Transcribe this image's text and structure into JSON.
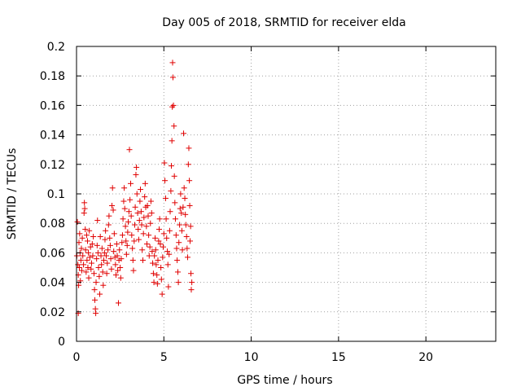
{
  "chart_data": {
    "type": "scatter",
    "title": "Day 005 of 2018, SRMTID for receiver elda",
    "xlabel": "GPS time / hours",
    "ylabel": "SRMTID / TECUs",
    "xlim": [
      0,
      24
    ],
    "ylim": [
      0,
      0.2
    ],
    "x_ticks": [
      0,
      5,
      10,
      15,
      20
    ],
    "x_tick_labels": [
      "0",
      "5",
      "10",
      "15",
      "20"
    ],
    "y_ticks": [
      0,
      0.02,
      0.04,
      0.06,
      0.08,
      0.1,
      0.12,
      0.14,
      0.16,
      0.18,
      0.2
    ],
    "y_tick_labels": [
      "0",
      "0.02",
      "0.04",
      "0.06",
      "0.08",
      "0.1",
      "0.12",
      "0.14",
      "0.16",
      "0.18",
      "0.2"
    ],
    "grid": true,
    "marker": "+",
    "color": "#e00000",
    "series": [
      {
        "name": "SRMTID",
        "points": [
          [
            0.02,
            0.058
          ],
          [
            0.05,
            0.081
          ],
          [
            0.08,
            0.052
          ],
          [
            0.1,
            0.045
          ],
          [
            0.12,
            0.038
          ],
          [
            0.14,
            0.067
          ],
          [
            0.16,
            0.05
          ],
          [
            0.18,
            0.073
          ],
          [
            0.2,
            0.06
          ],
          [
            0.22,
            0.041
          ],
          [
            0.1,
            0.019
          ],
          [
            0.25,
            0.055
          ],
          [
            0.28,
            0.063
          ],
          [
            0.3,
            0.048
          ],
          [
            0.33,
            0.07
          ],
          [
            0.36,
            0.058
          ],
          [
            0.4,
            0.052
          ],
          [
            0.43,
            0.087
          ],
          [
            0.45,
            0.094
          ],
          [
            0.47,
            0.09
          ],
          [
            0.5,
            0.076
          ],
          [
            0.52,
            0.062
          ],
          [
            0.55,
            0.047
          ],
          [
            0.58,
            0.072
          ],
          [
            0.6,
            0.055
          ],
          [
            0.63,
            0.068
          ],
          [
            0.65,
            0.05
          ],
          [
            0.68,
            0.06
          ],
          [
            0.7,
            0.043
          ],
          [
            0.73,
            0.075
          ],
          [
            0.76,
            0.057
          ],
          [
            0.8,
            0.064
          ],
          [
            0.83,
            0.049
          ],
          [
            0.86,
            0.053
          ],
          [
            0.9,
            0.066
          ],
          [
            0.93,
            0.058
          ],
          [
            0.96,
            0.071
          ],
          [
            1.0,
            0.046
          ],
          [
            1.03,
            0.035
          ],
          [
            1.05,
            0.028
          ],
          [
            1.08,
            0.022
          ],
          [
            1.1,
            0.019
          ],
          [
            1.12,
            0.04
          ],
          [
            1.15,
            0.056
          ],
          [
            1.18,
            0.065
          ],
          [
            1.2,
            0.082
          ],
          [
            1.23,
            0.06
          ],
          [
            1.26,
            0.05
          ],
          [
            1.3,
            0.044
          ],
          [
            1.33,
            0.032
          ],
          [
            1.36,
            0.071
          ],
          [
            1.4,
            0.058
          ],
          [
            1.43,
            0.052
          ],
          [
            1.46,
            0.063
          ],
          [
            1.5,
            0.047
          ],
          [
            1.53,
            0.038
          ],
          [
            1.56,
            0.055
          ],
          [
            1.6,
            0.06
          ],
          [
            1.63,
            0.069
          ],
          [
            1.66,
            0.075
          ],
          [
            1.7,
            0.058
          ],
          [
            1.73,
            0.046
          ],
          [
            1.76,
            0.053
          ],
          [
            1.8,
            0.062
          ],
          [
            1.83,
            0.079
          ],
          [
            1.86,
            0.085
          ],
          [
            1.9,
            0.07
          ],
          [
            1.93,
            0.065
          ],
          [
            1.96,
            0.056
          ],
          [
            2.0,
            0.049
          ],
          [
            2.03,
            0.092
          ],
          [
            2.06,
            0.104
          ],
          [
            2.1,
            0.089
          ],
          [
            2.13,
            0.061
          ],
          [
            2.16,
            0.073
          ],
          [
            2.2,
            0.057
          ],
          [
            2.23,
            0.052
          ],
          [
            2.26,
            0.045
          ],
          [
            2.3,
            0.066
          ],
          [
            2.33,
            0.058
          ],
          [
            2.36,
            0.048
          ],
          [
            2.4,
            0.026
          ],
          [
            2.43,
            0.055
          ],
          [
            2.46,
            0.062
          ],
          [
            2.5,
            0.05
          ],
          [
            2.53,
            0.043
          ],
          [
            2.56,
            0.056
          ],
          [
            2.6,
            0.067
          ],
          [
            2.63,
            0.072
          ],
          [
            2.66,
            0.083
          ],
          [
            2.7,
            0.095
          ],
          [
            2.73,
            0.104
          ],
          [
            2.76,
            0.09
          ],
          [
            2.8,
            0.078
          ],
          [
            2.83,
            0.068
          ],
          [
            2.86,
            0.059
          ],
          [
            2.9,
            0.065
          ],
          [
            2.93,
            0.074
          ],
          [
            2.96,
            0.081
          ],
          [
            3.0,
            0.088
          ],
          [
            3.03,
            0.13
          ],
          [
            3.06,
            0.096
          ],
          [
            3.1,
            0.107
          ],
          [
            3.13,
            0.085
          ],
          [
            3.16,
            0.072
          ],
          [
            3.2,
            0.063
          ],
          [
            3.23,
            0.055
          ],
          [
            3.26,
            0.048
          ],
          [
            3.3,
            0.068
          ],
          [
            3.33,
            0.079
          ],
          [
            3.36,
            0.091
          ],
          [
            3.4,
            0.113
          ],
          [
            3.43,
            0.118
          ],
          [
            3.46,
            0.1
          ],
          [
            3.5,
            0.087
          ],
          [
            3.53,
            0.076
          ],
          [
            3.56,
            0.069
          ],
          [
            3.6,
            0.082
          ],
          [
            3.63,
            0.095
          ],
          [
            3.66,
            0.103
          ],
          [
            3.7,
            0.088
          ],
          [
            3.73,
            0.079
          ],
          [
            3.76,
            0.062
          ],
          [
            3.8,
            0.055
          ],
          [
            3.83,
            0.073
          ],
          [
            3.86,
            0.084
          ],
          [
            3.9,
            0.098
          ],
          [
            3.93,
            0.107
          ],
          [
            3.96,
            0.091
          ],
          [
            4.0,
            0.078
          ],
          [
            4.03,
            0.066
          ],
          [
            4.06,
            0.092
          ],
          [
            4.1,
            0.085
          ],
          [
            4.13,
            0.072
          ],
          [
            4.16,
            0.058
          ],
          [
            4.2,
            0.064
          ],
          [
            4.23,
            0.08
          ],
          [
            4.26,
            0.095
          ],
          [
            4.3,
            0.087
          ],
          [
            4.33,
            0.061
          ],
          [
            4.36,
            0.053
          ],
          [
            4.4,
            0.046
          ],
          [
            4.43,
            0.04
          ],
          [
            4.46,
            0.058
          ],
          [
            4.5,
            0.07
          ],
          [
            4.53,
            0.062
          ],
          [
            4.56,
            0.052
          ],
          [
            4.6,
            0.045
          ],
          [
            4.63,
            0.039
          ],
          [
            4.66,
            0.055
          ],
          [
            4.7,
            0.068
          ],
          [
            4.73,
            0.076
          ],
          [
            4.76,
            0.083
          ],
          [
            4.8,
            0.066
          ],
          [
            4.83,
            0.05
          ],
          [
            4.86,
            0.042
          ],
          [
            4.9,
            0.032
          ],
          [
            4.93,
            0.057
          ],
          [
            4.96,
            0.064
          ],
          [
            5.0,
            0.073
          ],
          [
            5.03,
            0.121
          ],
          [
            5.06,
            0.109
          ],
          [
            5.1,
            0.097
          ],
          [
            5.13,
            0.083
          ],
          [
            5.16,
            0.07
          ],
          [
            5.2,
            0.061
          ],
          [
            5.23,
            0.052
          ],
          [
            5.26,
            0.037
          ],
          [
            5.3,
            0.059
          ],
          [
            5.33,
            0.075
          ],
          [
            5.36,
            0.088
          ],
          [
            5.4,
            0.102
          ],
          [
            5.43,
            0.119
          ],
          [
            5.46,
            0.136
          ],
          [
            5.48,
            0.159
          ],
          [
            5.5,
            0.189
          ],
          [
            5.52,
            0.179
          ],
          [
            5.55,
            0.16
          ],
          [
            5.58,
            0.146
          ],
          [
            5.6,
            0.112
          ],
          [
            5.63,
            0.094
          ],
          [
            5.66,
            0.083
          ],
          [
            5.7,
            0.072
          ],
          [
            5.73,
            0.063
          ],
          [
            5.76,
            0.055
          ],
          [
            5.8,
            0.047
          ],
          [
            5.83,
            0.04
          ],
          [
            5.86,
            0.067
          ],
          [
            5.9,
            0.079
          ],
          [
            5.93,
            0.09
          ],
          [
            5.96,
            0.1
          ],
          [
            6.0,
            0.087
          ],
          [
            6.03,
            0.075
          ],
          [
            6.06,
            0.062
          ],
          [
            6.1,
            0.091
          ],
          [
            6.13,
            0.141
          ],
          [
            6.16,
            0.104
          ],
          [
            6.2,
            0.097
          ],
          [
            6.23,
            0.086
          ],
          [
            6.26,
            0.079
          ],
          [
            6.3,
            0.071
          ],
          [
            6.33,
            0.063
          ],
          [
            6.36,
            0.057
          ],
          [
            6.4,
            0.12
          ],
          [
            6.43,
            0.131
          ],
          [
            6.46,
            0.109
          ],
          [
            6.48,
            0.092
          ],
          [
            6.5,
            0.068
          ],
          [
            6.53,
            0.078
          ],
          [
            6.55,
            0.046
          ],
          [
            6.57,
            0.035
          ],
          [
            6.6,
            0.04
          ]
        ]
      }
    ]
  }
}
